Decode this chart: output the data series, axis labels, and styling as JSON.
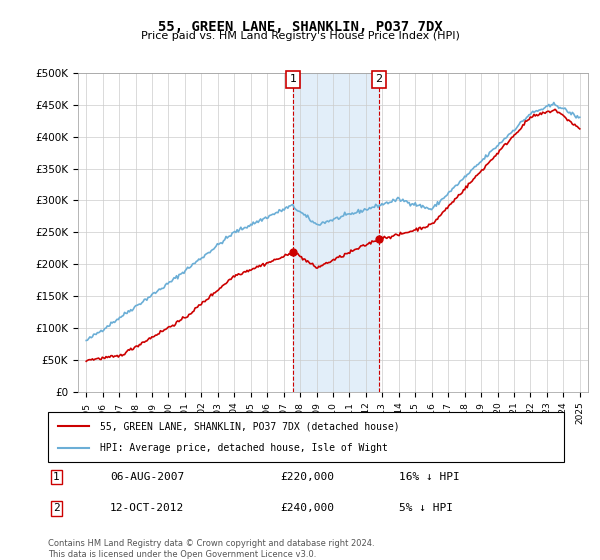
{
  "title": "55, GREEN LANE, SHANKLIN, PO37 7DX",
  "subtitle": "Price paid vs. HM Land Registry's House Price Index (HPI)",
  "ylim": [
    0,
    500000
  ],
  "yticks": [
    0,
    50000,
    100000,
    150000,
    200000,
    250000,
    300000,
    350000,
    400000,
    450000,
    500000
  ],
  "ytick_labels": [
    "£0",
    "£50K",
    "£100K",
    "£150K",
    "£200K",
    "£250K",
    "£300K",
    "£350K",
    "£400K",
    "£450K",
    "£500K"
  ],
  "hpi_color": "#6baed6",
  "price_color": "#cc0000",
  "annotation_box_color": "#cc0000",
  "shaded_color": "#d6e8f7",
  "transaction1": {
    "date_num": 2007.58,
    "price": 220000,
    "label": "1",
    "hpi_diff": "16% ↓ HPI",
    "date_str": "06-AUG-2007"
  },
  "transaction2": {
    "date_num": 2012.78,
    "price": 240000,
    "label": "2",
    "hpi_diff": "5% ↓ HPI",
    "date_str": "12-OCT-2012"
  },
  "legend_line1": "55, GREEN LANE, SHANKLIN, PO37 7DX (detached house)",
  "legend_line2": "HPI: Average price, detached house, Isle of Wight",
  "footer1": "Contains HM Land Registry data © Crown copyright and database right 2024.",
  "footer2": "This data is licensed under the Open Government Licence v3.0.",
  "xtick_years": [
    "1995",
    "1996",
    "1997",
    "1998",
    "1999",
    "2000",
    "2001",
    "2002",
    "2003",
    "2004",
    "2005",
    "2006",
    "2007",
    "2008",
    "2009",
    "2010",
    "2011",
    "2012",
    "2013",
    "2014",
    "2015",
    "2016",
    "2017",
    "2018",
    "2019",
    "2020",
    "2021",
    "2022",
    "2023",
    "2024",
    "2025"
  ]
}
